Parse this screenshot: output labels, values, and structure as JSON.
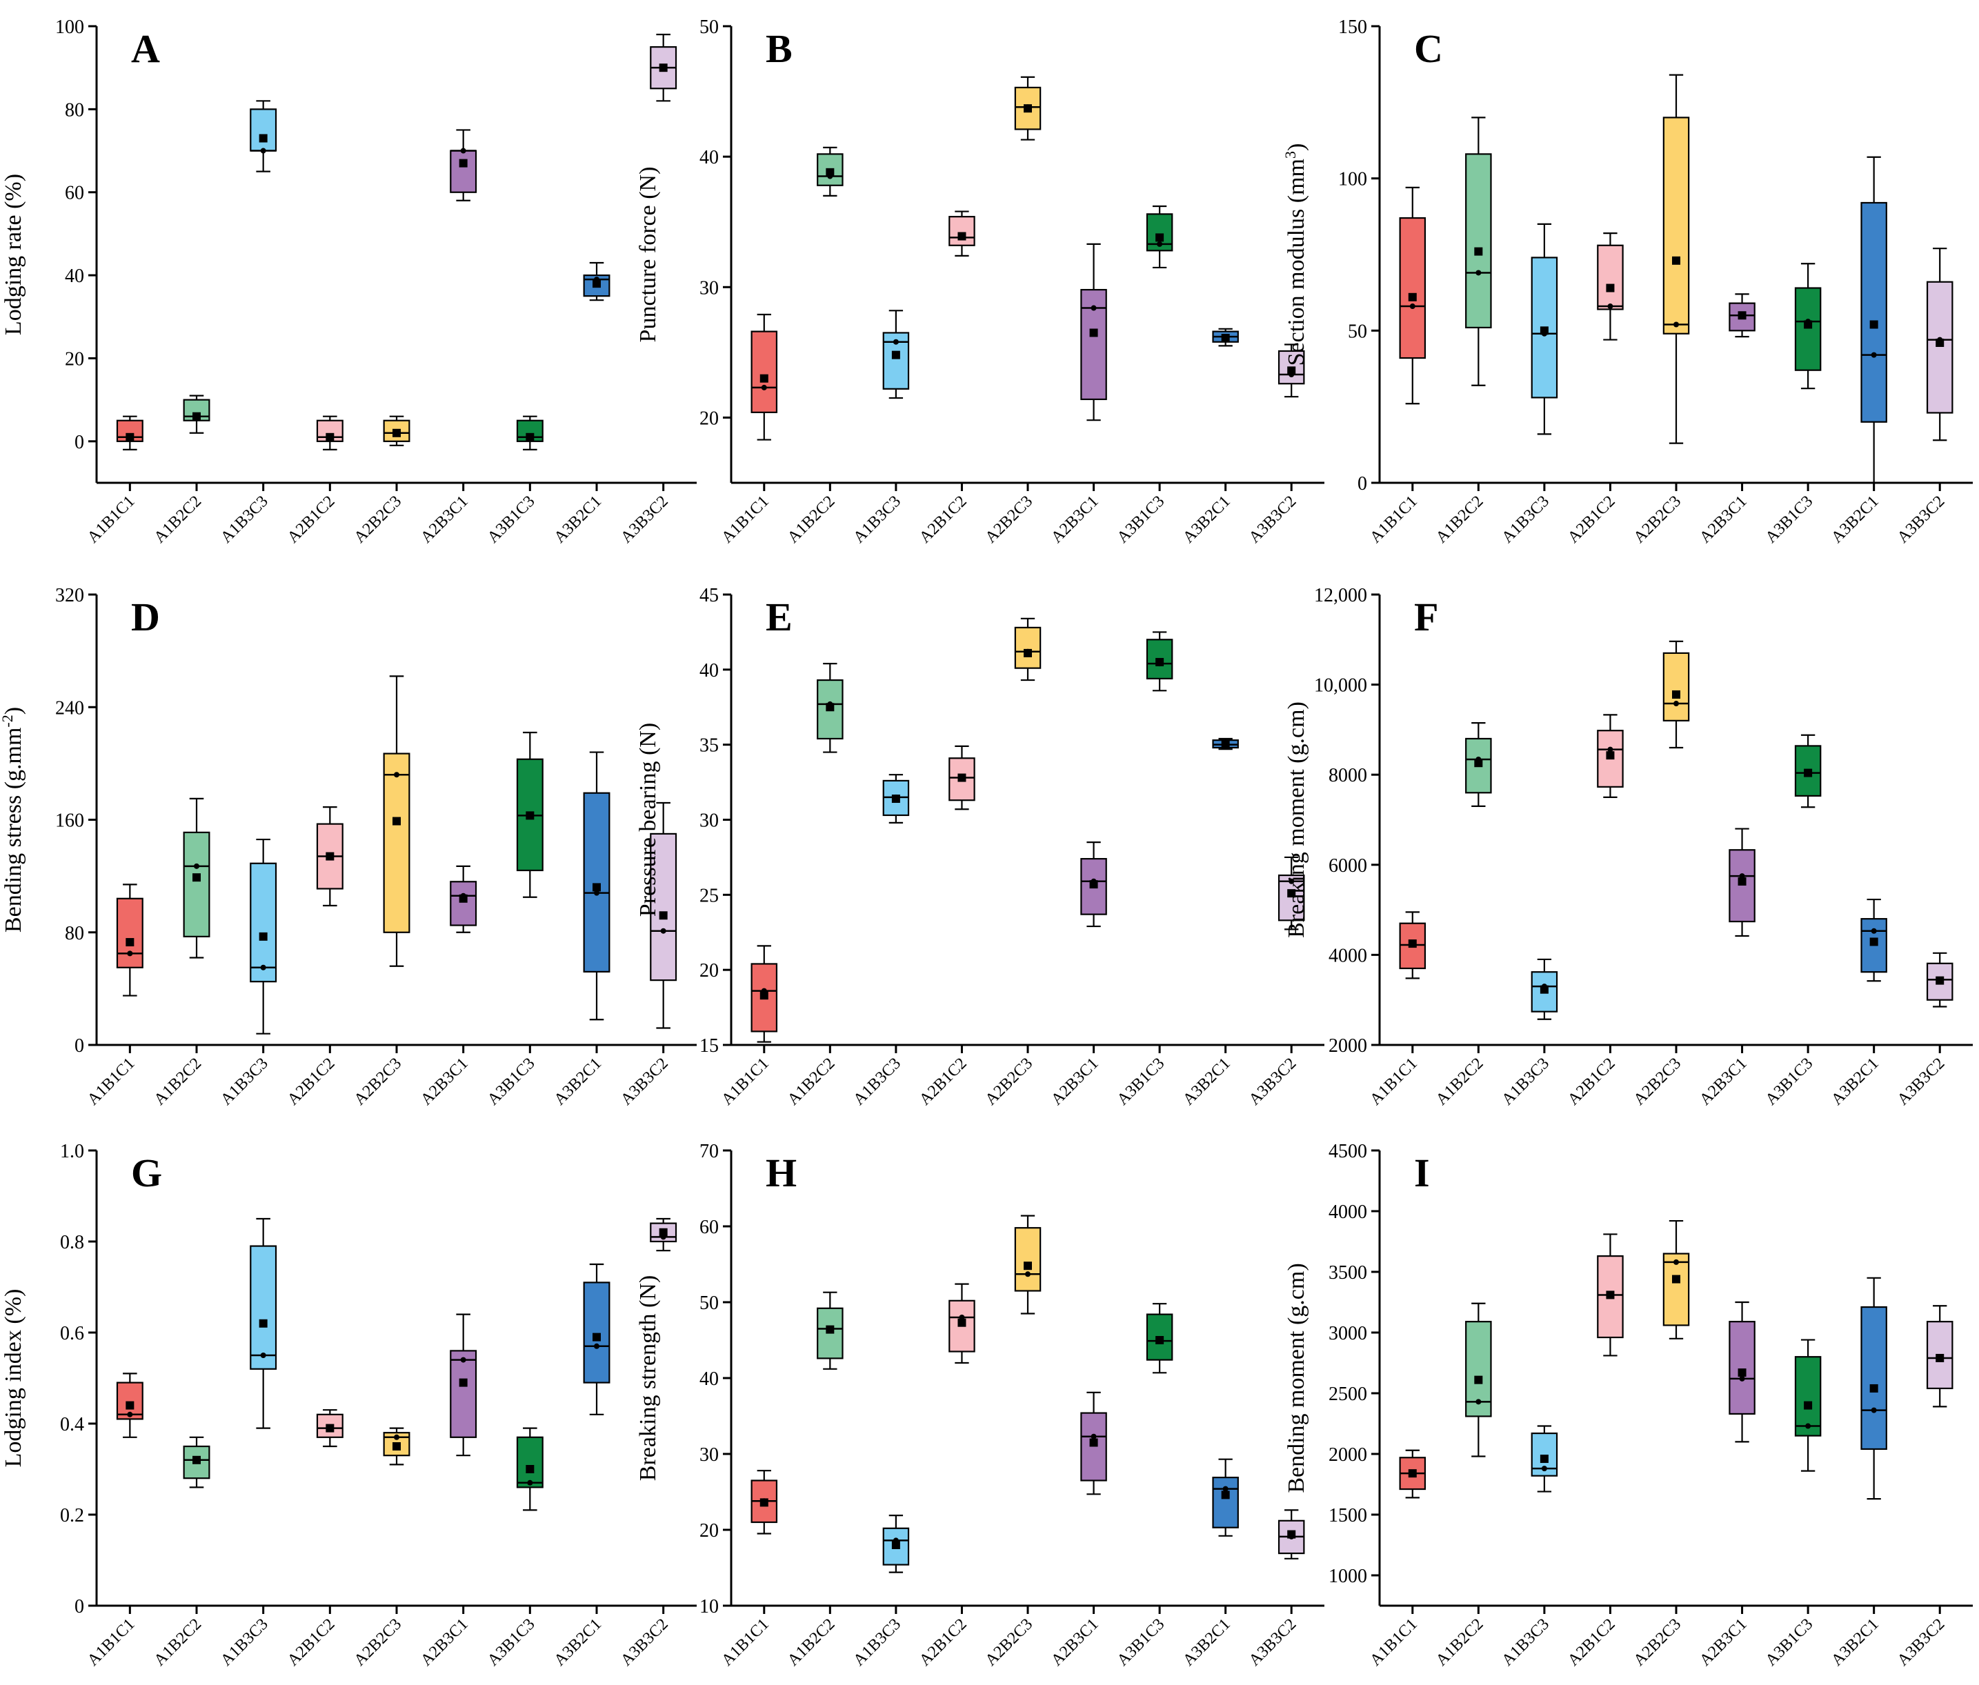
{
  "figure": {
    "colors": [
      "#ef6a66",
      "#82c9a1",
      "#7dcef2",
      "#f8bcc2",
      "#fcd36e",
      "#a77ab8",
      "#0f8b43",
      "#3c82c8",
      "#dcc6e2"
    ],
    "categories": [
      "A1B1C1",
      "A1B2C2",
      "A1B3C3",
      "A2B1C2",
      "A2B2C3",
      "A2B3C1",
      "A3B1C3",
      "A3B2C1",
      "A3B3C2"
    ]
  },
  "chart_data": [
    {
      "type": "box",
      "letter": "A",
      "ylabel": "Lodging rate (%)",
      "ylim": [
        -10,
        100
      ],
      "yticks": [
        0,
        20,
        40,
        60,
        80,
        100
      ],
      "tick_labels": [
        "0",
        "20",
        "40",
        "60",
        "80",
        "100"
      ],
      "boxes": [
        {
          "min": -2,
          "q1": 0,
          "median": 1,
          "q3": 5,
          "max": 6,
          "mean": 1
        },
        {
          "min": 2,
          "q1": 5,
          "median": 6,
          "q3": 10,
          "max": 11,
          "mean": 6
        },
        {
          "min": 65,
          "q1": 70,
          "median": 70,
          "q3": 80,
          "max": 82,
          "mean": 73
        },
        {
          "min": -2,
          "q1": 0,
          "median": 1,
          "q3": 5,
          "max": 6,
          "mean": 1
        },
        {
          "min": -1,
          "q1": 0,
          "median": 2,
          "q3": 5,
          "max": 6,
          "mean": 2
        },
        {
          "min": 58,
          "q1": 60,
          "median": 70,
          "q3": 70,
          "max": 75,
          "mean": 67
        },
        {
          "min": -2,
          "q1": 0,
          "median": 1,
          "q3": 5,
          "max": 6,
          "mean": 1
        },
        {
          "min": 34,
          "q1": 35,
          "median": 39,
          "q3": 40,
          "max": 43,
          "mean": 38
        },
        {
          "min": 82,
          "q1": 85,
          "median": 90,
          "q3": 95,
          "max": 98,
          "mean": 90
        }
      ]
    },
    {
      "type": "box",
      "letter": "B",
      "ylabel": "Puncture force (N)",
      "ylim": [
        15,
        50
      ],
      "yticks": [
        20,
        30,
        40,
        50
      ],
      "tick_labels": [
        "20",
        "30",
        "40",
        "50"
      ],
      "boxes": [
        {
          "min": 18.3,
          "q1": 20.4,
          "median": 22.3,
          "q3": 26.6,
          "max": 27.9,
          "mean": 23
        },
        {
          "min": 37,
          "q1": 37.8,
          "median": 38.5,
          "q3": 40.2,
          "max": 40.7,
          "mean": 38.8
        },
        {
          "min": 21.5,
          "q1": 22.2,
          "median": 25.8,
          "q3": 26.5,
          "max": 28.2,
          "mean": 24.8
        },
        {
          "min": 32.4,
          "q1": 33.2,
          "median": 33.8,
          "q3": 35.4,
          "max": 35.8,
          "mean": 33.9
        },
        {
          "min": 41.3,
          "q1": 42.1,
          "median": 43.8,
          "q3": 45.3,
          "max": 46.1,
          "mean": 43.7
        },
        {
          "min": 19.8,
          "q1": 21.4,
          "median": 28.4,
          "q3": 29.8,
          "max": 33.3,
          "mean": 26.5
        },
        {
          "min": 31.5,
          "q1": 32.8,
          "median": 33.3,
          "q3": 35.6,
          "max": 36.2,
          "mean": 33.8
        },
        {
          "min": 25.5,
          "q1": 25.8,
          "median": 26.2,
          "q3": 26.6,
          "max": 26.8,
          "mean": 26.1
        },
        {
          "min": 21.6,
          "q1": 22.6,
          "median": 23.3,
          "q3": 25.1,
          "max": 25.6,
          "mean": 23.6
        }
      ]
    },
    {
      "type": "box",
      "letter": "C",
      "ylabel": "Section modulus (mm",
      "ylabel_sup": "3",
      "ylabel_suffix": ")",
      "ylim": [
        0,
        150
      ],
      "yticks": [
        0,
        50,
        100,
        150
      ],
      "tick_labels": [
        "0",
        "50",
        "100",
        "150"
      ],
      "boxes": [
        {
          "min": 26,
          "q1": 41,
          "median": 58,
          "q3": 87,
          "max": 97,
          "mean": 61
        },
        {
          "min": 32,
          "q1": 51,
          "median": 69,
          "q3": 108,
          "max": 120,
          "mean": 76
        },
        {
          "min": 16,
          "q1": 28,
          "median": 49,
          "q3": 74,
          "max": 85,
          "mean": 50
        },
        {
          "min": 47,
          "q1": 57,
          "median": 58,
          "q3": 78,
          "max": 82,
          "mean": 64
        },
        {
          "min": 13,
          "q1": 49,
          "median": 52,
          "q3": 120,
          "max": 134,
          "mean": 73
        },
        {
          "min": 48,
          "q1": 50,
          "median": 55,
          "q3": 59,
          "max": 62,
          "mean": 55
        },
        {
          "min": 31,
          "q1": 37,
          "median": 53,
          "q3": 64,
          "max": 72,
          "mean": 52
        },
        {
          "min": 0,
          "q1": 20,
          "median": 42,
          "q3": 92,
          "max": 107,
          "mean": 52
        },
        {
          "min": 14,
          "q1": 23,
          "median": 47,
          "q3": 66,
          "max": 77,
          "mean": 46
        }
      ]
    },
    {
      "type": "box",
      "letter": "D",
      "ylabel": "Bending stress (g.mm",
      "ylabel_sup": "-2",
      "ylabel_suffix": ")",
      "ylim": [
        0,
        320
      ],
      "yticks": [
        0,
        80,
        160,
        240,
        320
      ],
      "tick_labels": [
        "0",
        "80",
        "160",
        "240",
        "320"
      ],
      "boxes": [
        {
          "min": 35,
          "q1": 55,
          "median": 65,
          "q3": 104,
          "max": 114,
          "mean": 73
        },
        {
          "min": 62,
          "q1": 77,
          "median": 127,
          "q3": 151,
          "max": 175,
          "mean": 119
        },
        {
          "min": 8,
          "q1": 45,
          "median": 55,
          "q3": 129,
          "max": 146,
          "mean": 77
        },
        {
          "min": 99,
          "q1": 111,
          "median": 134,
          "q3": 157,
          "max": 169,
          "mean": 134
        },
        {
          "min": 56,
          "q1": 80,
          "median": 192,
          "q3": 207,
          "max": 262,
          "mean": 159
        },
        {
          "min": 80,
          "q1": 85,
          "median": 106,
          "q3": 116,
          "max": 127,
          "mean": 104
        },
        {
          "min": 105,
          "q1": 124,
          "median": 163,
          "q3": 203,
          "max": 222,
          "mean": 163
        },
        {
          "min": 18,
          "q1": 52,
          "median": 108,
          "q3": 179,
          "max": 208,
          "mean": 112
        },
        {
          "min": 12,
          "q1": 46,
          "median": 81,
          "q3": 150,
          "max": 172,
          "mean": 92
        }
      ]
    },
    {
      "type": "box",
      "letter": "E",
      "ylabel": "Pressure bearing (N)",
      "ylim": [
        15,
        45
      ],
      "yticks": [
        15,
        20,
        25,
        30,
        35,
        40,
        45
      ],
      "tick_labels": [
        "15",
        "20",
        "25",
        "30",
        "35",
        "40",
        "45"
      ],
      "boxes": [
        {
          "min": 15.2,
          "q1": 15.9,
          "median": 18.6,
          "q3": 20.4,
          "max": 21.6,
          "mean": 18.3
        },
        {
          "min": 34.5,
          "q1": 35.4,
          "median": 37.7,
          "q3": 39.3,
          "max": 40.4,
          "mean": 37.5
        },
        {
          "min": 29.8,
          "q1": 30.3,
          "median": 31.5,
          "q3": 32.6,
          "max": 33.0,
          "mean": 31.4
        },
        {
          "min": 30.7,
          "q1": 31.3,
          "median": 32.8,
          "q3": 34.1,
          "max": 34.9,
          "mean": 32.8
        },
        {
          "min": 39.3,
          "q1": 40.1,
          "median": 41.2,
          "q3": 42.8,
          "max": 43.4,
          "mean": 41.1
        },
        {
          "min": 22.9,
          "q1": 23.7,
          "median": 25.9,
          "q3": 27.4,
          "max": 28.5,
          "mean": 25.7
        },
        {
          "min": 38.6,
          "q1": 39.4,
          "median": 40.4,
          "q3": 42.0,
          "max": 42.5,
          "mean": 40.5
        },
        {
          "min": 34.7,
          "q1": 34.8,
          "median": 35.0,
          "q3": 35.3,
          "max": 35.4,
          "mean": 35.0
        },
        {
          "min": 22.7,
          "q1": 23.3,
          "median": 25.9,
          "q3": 26.3,
          "max": 27.5,
          "mean": 25.1
        }
      ]
    },
    {
      "type": "box",
      "letter": "F",
      "ylabel": "Breaking moment (g.cm)",
      "ylim": [
        2000,
        12000
      ],
      "yticks": [
        2000,
        4000,
        6000,
        8000,
        10000,
        12000
      ],
      "tick_labels": [
        "2000",
        "4000",
        "6000",
        "8000",
        "10,000",
        "12,000"
      ],
      "boxes": [
        {
          "min": 3480,
          "q1": 3700,
          "median": 4220,
          "q3": 4700,
          "max": 4950,
          "mean": 4250
        },
        {
          "min": 7300,
          "q1": 7600,
          "median": 8340,
          "q3": 8800,
          "max": 9150,
          "mean": 8260
        },
        {
          "min": 2570,
          "q1": 2740,
          "median": 3300,
          "q3": 3620,
          "max": 3900,
          "mean": 3230
        },
        {
          "min": 7500,
          "q1": 7730,
          "median": 8560,
          "q3": 8980,
          "max": 9330,
          "mean": 8430
        },
        {
          "min": 8600,
          "q1": 9200,
          "median": 9580,
          "q3": 10700,
          "max": 10960,
          "mean": 9780
        },
        {
          "min": 4420,
          "q1": 4740,
          "median": 5750,
          "q3": 6330,
          "max": 6800,
          "mean": 5630
        },
        {
          "min": 7280,
          "q1": 7530,
          "median": 8040,
          "q3": 8640,
          "max": 8880,
          "mean": 8040
        },
        {
          "min": 3420,
          "q1": 3620,
          "median": 4530,
          "q3": 4800,
          "max": 5230,
          "mean": 4290
        },
        {
          "min": 2850,
          "q1": 3000,
          "median": 3450,
          "q3": 3810,
          "max": 4040,
          "mean": 3430
        }
      ]
    },
    {
      "type": "box",
      "letter": "G",
      "ylabel": "Lodging index (%)",
      "ylim": [
        0,
        1.0
      ],
      "yticks": [
        0,
        0.2,
        0.4,
        0.6,
        0.8,
        1.0
      ],
      "tick_labels": [
        "0",
        "0.2",
        "0.4",
        "0.6",
        "0.8",
        "1.0"
      ],
      "boxes": [
        {
          "min": 0.37,
          "q1": 0.41,
          "median": 0.42,
          "q3": 0.49,
          "max": 0.51,
          "mean": 0.44
        },
        {
          "min": 0.26,
          "q1": 0.28,
          "median": 0.32,
          "q3": 0.35,
          "max": 0.37,
          "mean": 0.32
        },
        {
          "min": 0.39,
          "q1": 0.52,
          "median": 0.55,
          "q3": 0.79,
          "max": 0.85,
          "mean": 0.62
        },
        {
          "min": 0.35,
          "q1": 0.37,
          "median": 0.39,
          "q3": 0.42,
          "max": 0.43,
          "mean": 0.39
        },
        {
          "min": 0.31,
          "q1": 0.33,
          "median": 0.37,
          "q3": 0.38,
          "max": 0.39,
          "mean": 0.35
        },
        {
          "min": 0.33,
          "q1": 0.37,
          "median": 0.54,
          "q3": 0.56,
          "max": 0.64,
          "mean": 0.49
        },
        {
          "min": 0.21,
          "q1": 0.26,
          "median": 0.27,
          "q3": 0.37,
          "max": 0.39,
          "mean": 0.3
        },
        {
          "min": 0.42,
          "q1": 0.49,
          "median": 0.57,
          "q3": 0.71,
          "max": 0.75,
          "mean": 0.59
        },
        {
          "min": 0.78,
          "q1": 0.8,
          "median": 0.81,
          "q3": 0.84,
          "max": 0.85,
          "mean": 0.82
        }
      ]
    },
    {
      "type": "box",
      "letter": "H",
      "ylabel": "Breaking strength (N)",
      "ylim": [
        10,
        70
      ],
      "yticks": [
        10,
        20,
        30,
        40,
        50,
        60,
        70
      ],
      "tick_labels": [
        "10",
        "20",
        "30",
        "40",
        "50",
        "60",
        "70"
      ],
      "boxes": [
        {
          "min": 19.5,
          "q1": 21.0,
          "median": 23.8,
          "q3": 26.5,
          "max": 27.8,
          "mean": 23.6
        },
        {
          "min": 41.2,
          "q1": 42.6,
          "median": 46.5,
          "q3": 49.2,
          "max": 51.3,
          "mean": 46.4
        },
        {
          "min": 14.4,
          "q1": 15.4,
          "median": 18.6,
          "q3": 20.2,
          "max": 21.9,
          "mean": 18.0
        },
        {
          "min": 42.0,
          "q1": 43.5,
          "median": 48.0,
          "q3": 50.2,
          "max": 52.4,
          "mean": 47.3
        },
        {
          "min": 48.5,
          "q1": 51.5,
          "median": 53.7,
          "q3": 59.8,
          "max": 61.4,
          "mean": 54.8
        },
        {
          "min": 24.7,
          "q1": 26.5,
          "median": 32.3,
          "q3": 35.4,
          "max": 38.1,
          "mean": 31.5
        },
        {
          "min": 40.7,
          "q1": 42.4,
          "median": 44.9,
          "q3": 48.4,
          "max": 49.8,
          "mean": 45.0
        },
        {
          "min": 19.2,
          "q1": 20.3,
          "median": 25.4,
          "q3": 26.9,
          "max": 29.3,
          "mean": 24.6
        },
        {
          "min": 16.2,
          "q1": 16.9,
          "median": 19.1,
          "q3": 21.2,
          "max": 22.6,
          "mean": 19.4
        }
      ]
    },
    {
      "type": "box",
      "letter": "I",
      "ylabel": "Bending moment (g.cm)",
      "ylim": [
        750,
        4500
      ],
      "yticks": [
        1000,
        1500,
        2000,
        2500,
        3000,
        3500,
        4000,
        4500
      ],
      "tick_labels": [
        "1000",
        "1500",
        "2000",
        "2500",
        "3000",
        "3500",
        "4000",
        "4500"
      ],
      "boxes": [
        {
          "min": 1640,
          "q1": 1710,
          "median": 1840,
          "q3": 1970,
          "max": 2030,
          "mean": 1840
        },
        {
          "min": 1980,
          "q1": 2310,
          "median": 2430,
          "q3": 3090,
          "max": 3240,
          "mean": 2610
        },
        {
          "min": 1690,
          "q1": 1820,
          "median": 1880,
          "q3": 2170,
          "max": 2230,
          "mean": 1960
        },
        {
          "min": 2810,
          "q1": 2960,
          "median": 3310,
          "q3": 3630,
          "max": 3810,
          "mean": 3310
        },
        {
          "min": 2950,
          "q1": 3060,
          "median": 3580,
          "q3": 3650,
          "max": 3920,
          "mean": 3440
        },
        {
          "min": 2100,
          "q1": 2330,
          "median": 2620,
          "q3": 3090,
          "max": 3250,
          "mean": 2670
        },
        {
          "min": 1860,
          "q1": 2150,
          "median": 2230,
          "q3": 2800,
          "max": 2940,
          "mean": 2400
        },
        {
          "min": 1630,
          "q1": 2040,
          "median": 2360,
          "q3": 3210,
          "max": 3450,
          "mean": 2540
        },
        {
          "min": 2390,
          "q1": 2540,
          "median": 2790,
          "q3": 3090,
          "max": 3220,
          "mean": 2790
        }
      ]
    }
  ]
}
